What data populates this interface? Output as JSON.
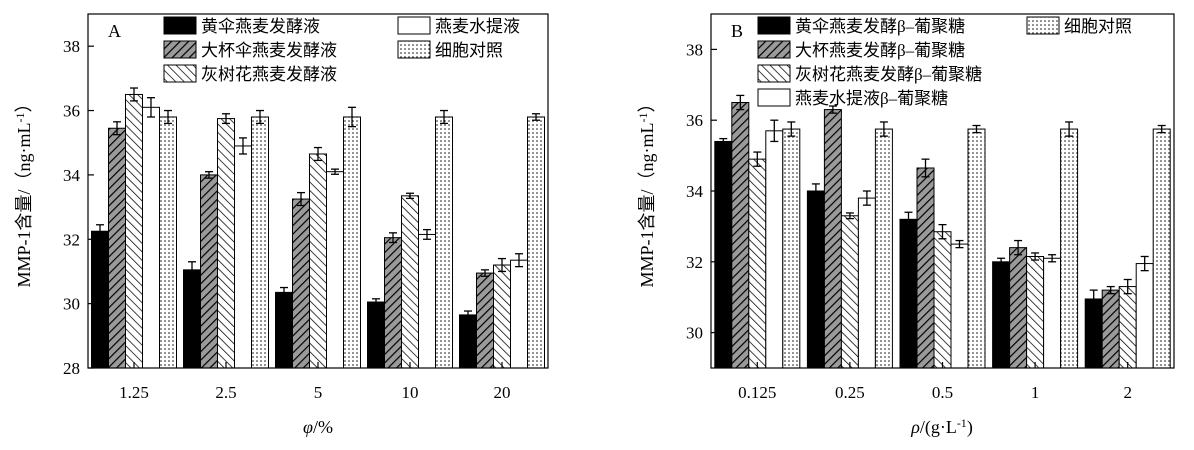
{
  "chart_data": [
    {
      "type": "bar",
      "panel_label": "A",
      "categories": [
        "1.25",
        "2.5",
        "5",
        "10",
        "20"
      ],
      "xlabel_italic": "φ",
      "xlabel_rest": "/%",
      "ylabel_main": "MMP-1含量/（ng·mL",
      "ylabel_sup": "-1",
      "ylabel_close": "）",
      "ylim": [
        28,
        39
      ],
      "yticks": [
        "28",
        "30",
        "32",
        "34",
        "36",
        "38"
      ],
      "grid": false,
      "legend_position": "top",
      "series": [
        {
          "name": "黄伞燕麦发酵液",
          "values": [
            32.25,
            31.05,
            30.35,
            30.05,
            29.65
          ],
          "errors": [
            0.2,
            0.25,
            0.15,
            0.1,
            0.12
          ]
        },
        {
          "name": "大杯伞燕麦发酵液",
          "values": [
            35.45,
            34.0,
            33.25,
            32.05,
            30.95
          ],
          "errors": [
            0.2,
            0.1,
            0.2,
            0.15,
            0.1
          ]
        },
        {
          "name": "灰树花燕麦发酵液",
          "values": [
            36.5,
            35.75,
            34.65,
            33.35,
            31.2
          ],
          "errors": [
            0.2,
            0.15,
            0.2,
            0.08,
            0.2
          ]
        },
        {
          "name": "燕麦水提液",
          "values": [
            36.1,
            34.9,
            34.1,
            32.15,
            31.35
          ],
          "errors": [
            0.3,
            0.25,
            0.08,
            0.15,
            0.2
          ]
        },
        {
          "name": "细胞对照",
          "values": [
            35.8,
            35.8,
            35.8,
            35.8,
            35.8
          ],
          "errors": [
            0.2,
            0.2,
            0.3,
            0.2,
            0.1
          ]
        }
      ]
    },
    {
      "type": "bar",
      "panel_label": "B",
      "categories": [
        "0.125",
        "0.25",
        "0.5",
        "1",
        "2"
      ],
      "xlabel_italic": "ρ",
      "xlabel_rest": "/(g·L",
      "xlabel_sup": "-1",
      "xlabel_close": ")",
      "ylabel_main": "MMP-1含量/（ng·mL",
      "ylabel_sup": "-1",
      "ylabel_close": "）",
      "ylim": [
        29,
        39
      ],
      "yticks": [
        "30",
        "32",
        "34",
        "36",
        "38"
      ],
      "grid": false,
      "legend_position": "top",
      "series": [
        {
          "name": "黄伞燕麦发酵β–葡聚糖",
          "values": [
            35.4,
            34.0,
            33.2,
            32.0,
            30.95
          ],
          "errors": [
            0.08,
            0.2,
            0.2,
            0.1,
            0.25
          ]
        },
        {
          "name": "大杯燕麦发酵β–葡聚糖",
          "values": [
            36.5,
            36.3,
            34.65,
            32.4,
            31.2
          ],
          "errors": [
            0.2,
            0.1,
            0.25,
            0.2,
            0.1
          ]
        },
        {
          "name": "灰树花燕麦发酵β–葡聚糖",
          "values": [
            34.9,
            33.3,
            32.85,
            32.15,
            31.3
          ],
          "errors": [
            0.2,
            0.08,
            0.2,
            0.1,
            0.2
          ]
        },
        {
          "name": "燕麦水提液β–葡聚糖",
          "values": [
            35.7,
            33.8,
            32.5,
            32.1,
            31.95
          ],
          "errors": [
            0.3,
            0.2,
            0.1,
            0.1,
            0.2
          ]
        },
        {
          "name": "细胞对照",
          "values": [
            35.75,
            35.75,
            35.75,
            35.75,
            35.75
          ],
          "errors": [
            0.2,
            0.2,
            0.1,
            0.2,
            0.1
          ]
        }
      ]
    }
  ]
}
